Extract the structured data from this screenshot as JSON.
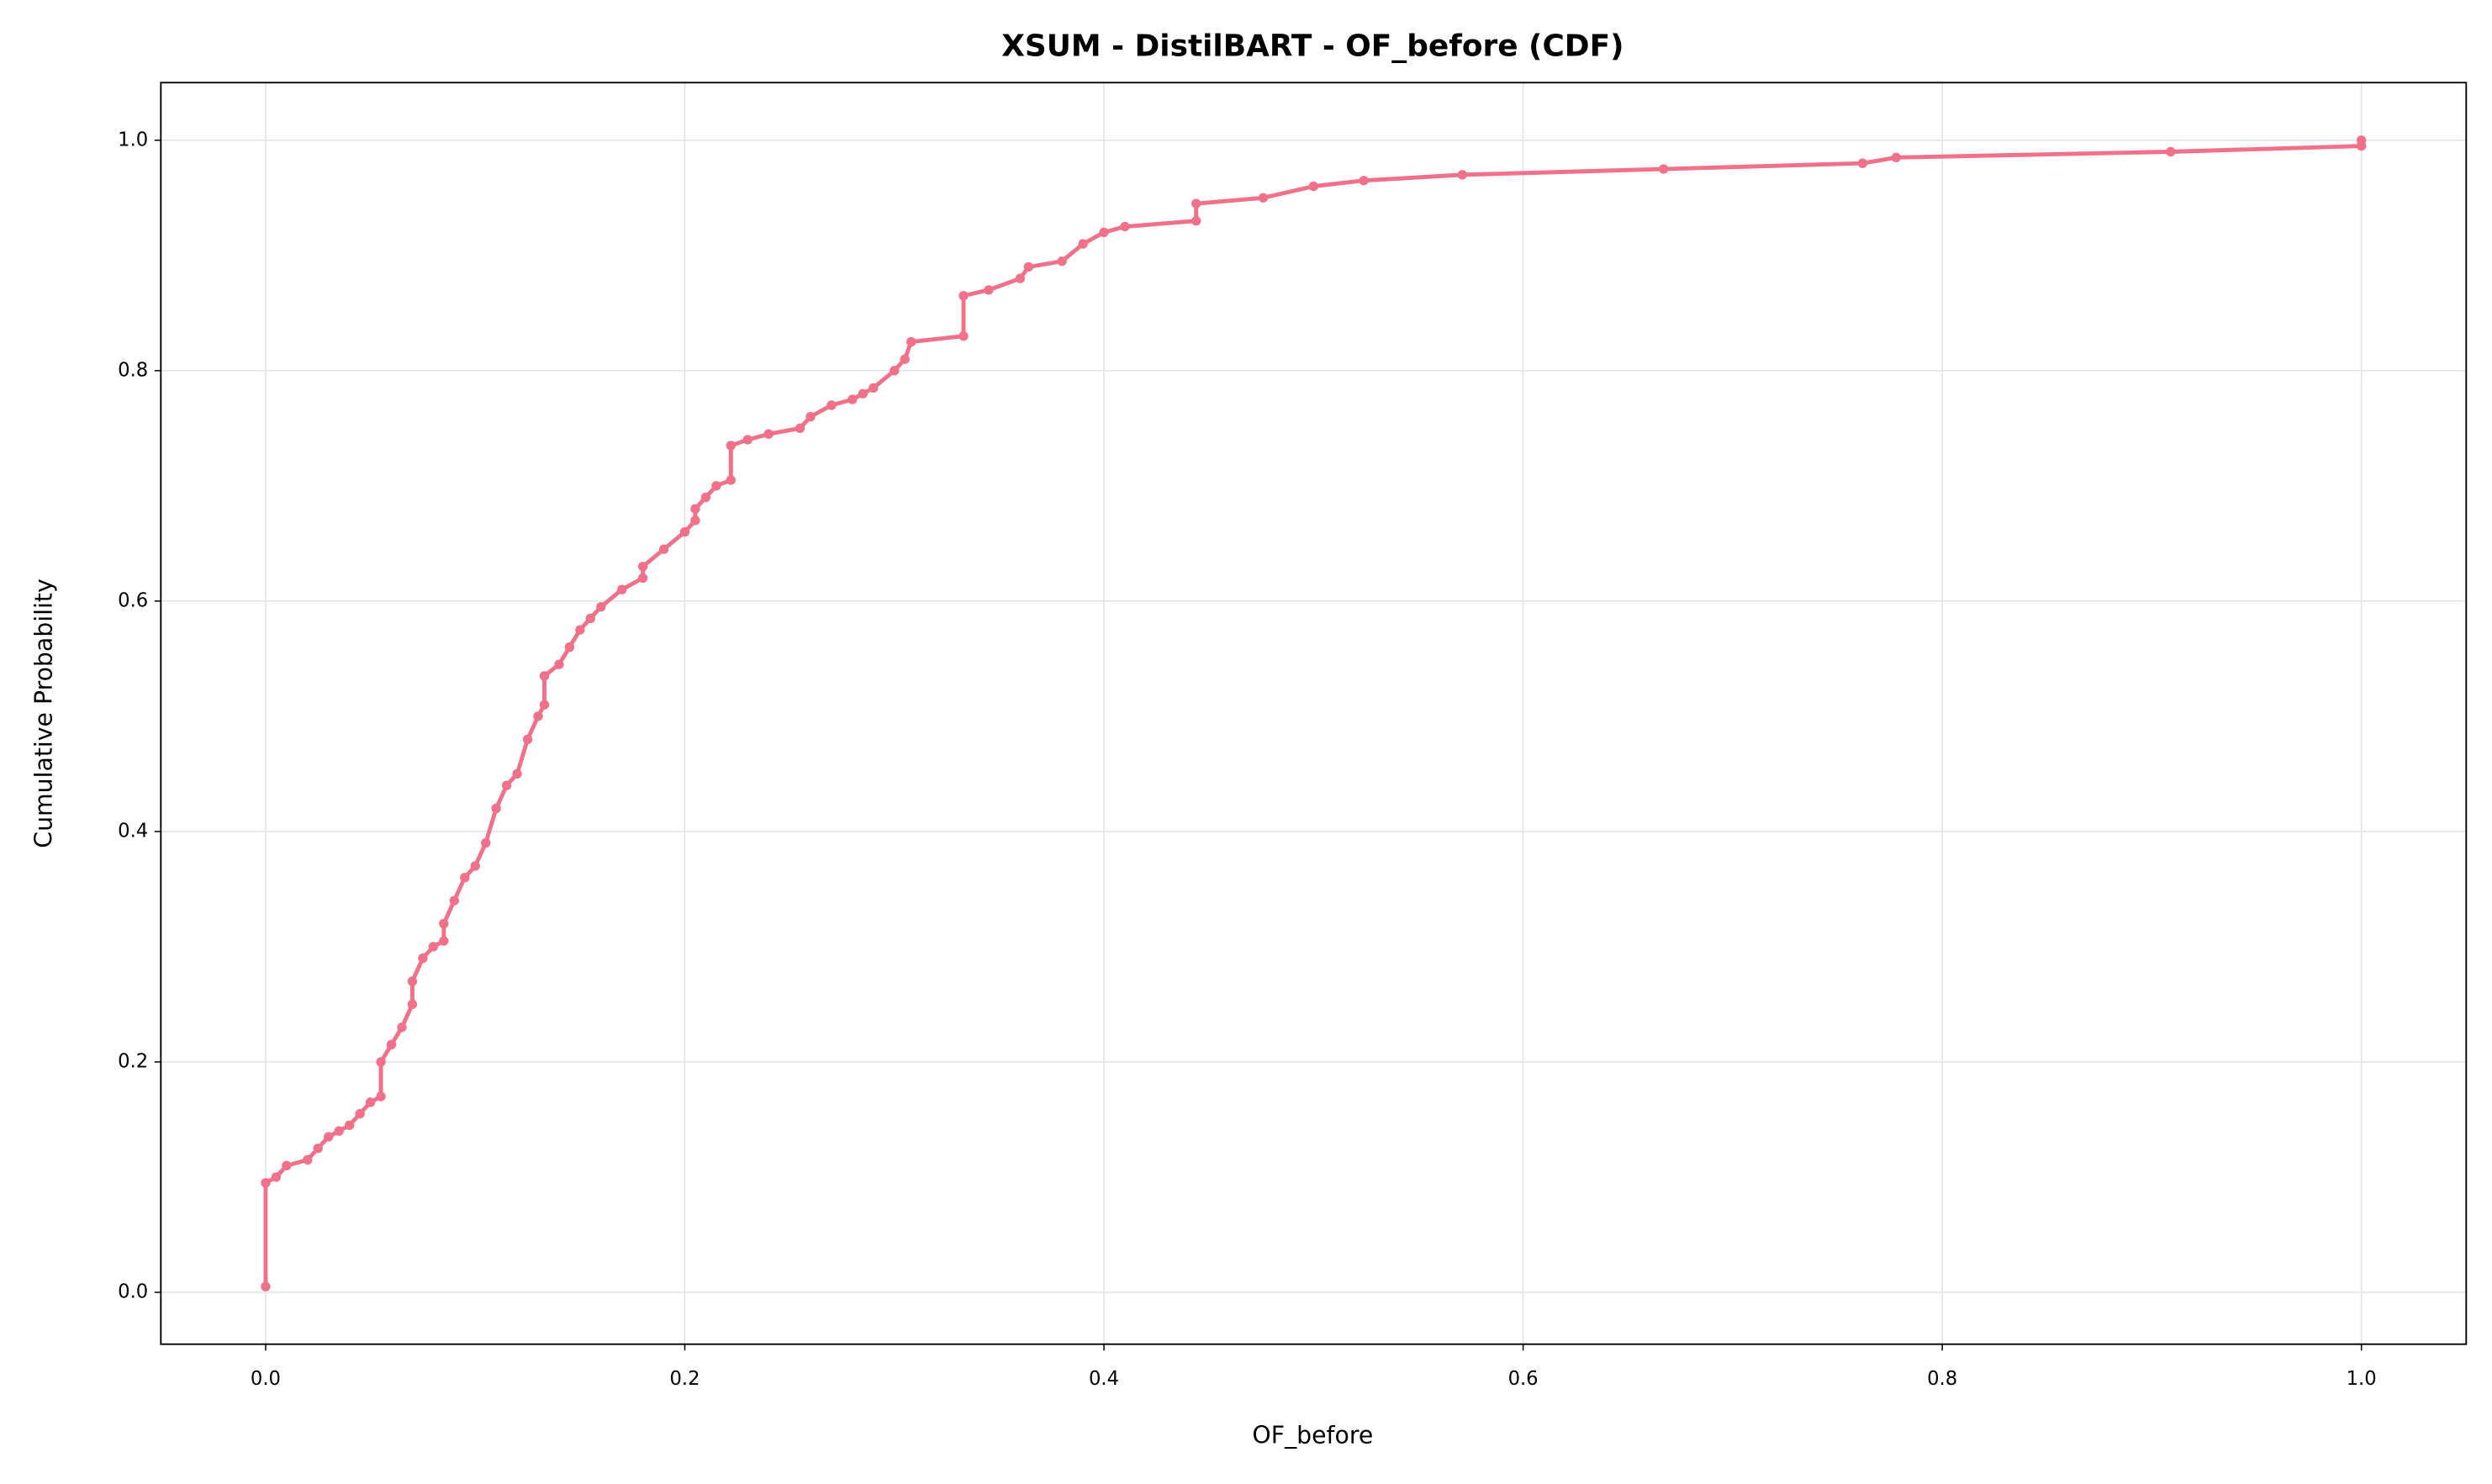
{
  "chart_data": {
    "type": "line",
    "title": "XSUM - DistilBART - OF_before (CDF)",
    "x_label": "OF_before",
    "y_label": "Cumulative Probability",
    "color": "#f07189",
    "grid": true,
    "xlim": [
      -0.05,
      1.05
    ],
    "ylim": [
      -0.045,
      1.05
    ],
    "xticks": [
      {
        "value": 0,
        "label": "0.0"
      },
      0.2,
      0.4,
      0.6,
      0.8,
      {
        "value": 1,
        "label": "1.0"
      }
    ],
    "yticks": [
      {
        "value": 0,
        "label": "0.0"
      },
      0.2,
      0.4,
      0.6,
      0.8,
      {
        "value": 1,
        "label": "1.0"
      }
    ],
    "x": [
      0,
      0,
      0.005,
      0.01,
      0.02,
      0.025,
      0.03,
      0.035,
      0.04,
      0.045,
      0.05,
      0.055,
      0.055,
      0.06,
      0.065,
      0.07,
      0.07,
      0.075,
      0.08,
      0.085,
      0.085,
      0.09,
      0.095,
      0.1,
      0.105,
      0.11,
      0.115,
      0.12,
      0.125,
      0.13,
      0.133,
      0.133,
      0.14,
      0.145,
      0.15,
      0.155,
      0.16,
      0.17,
      0.18,
      0.18,
      0.19,
      0.2,
      0.205,
      0.205,
      0.21,
      0.215,
      0.222,
      0.222,
      0.23,
      0.24,
      0.255,
      0.26,
      0.27,
      0.28,
      0.285,
      0.29,
      0.3,
      0.305,
      0.308,
      0.333,
      0.333,
      0.345,
      0.36,
      0.364,
      0.38,
      0.39,
      0.4,
      0.41,
      0.444,
      0.444,
      0.476,
      0.5,
      0.524,
      0.571,
      0.667,
      0.762,
      0.778,
      0.909,
      1.0,
      1.0
    ],
    "values": [
      0.005,
      0.095,
      0.1,
      0.11,
      0.115,
      0.125,
      0.135,
      0.14,
      0.145,
      0.155,
      0.165,
      0.17,
      0.2,
      0.215,
      0.23,
      0.25,
      0.27,
      0.29,
      0.3,
      0.305,
      0.32,
      0.34,
      0.36,
      0.37,
      0.39,
      0.42,
      0.44,
      0.45,
      0.48,
      0.5,
      0.51,
      0.535,
      0.545,
      0.56,
      0.575,
      0.585,
      0.595,
      0.61,
      0.62,
      0.63,
      0.645,
      0.66,
      0.67,
      0.68,
      0.69,
      0.7,
      0.705,
      0.735,
      0.74,
      0.745,
      0.75,
      0.76,
      0.77,
      0.775,
      0.78,
      0.785,
      0.8,
      0.81,
      0.825,
      0.83,
      0.865,
      0.87,
      0.88,
      0.89,
      0.895,
      0.91,
      0.92,
      0.925,
      0.93,
      0.945,
      0.95,
      0.96,
      0.965,
      0.97,
      0.975,
      0.98,
      0.985,
      0.99,
      0.995,
      1.0
    ]
  }
}
